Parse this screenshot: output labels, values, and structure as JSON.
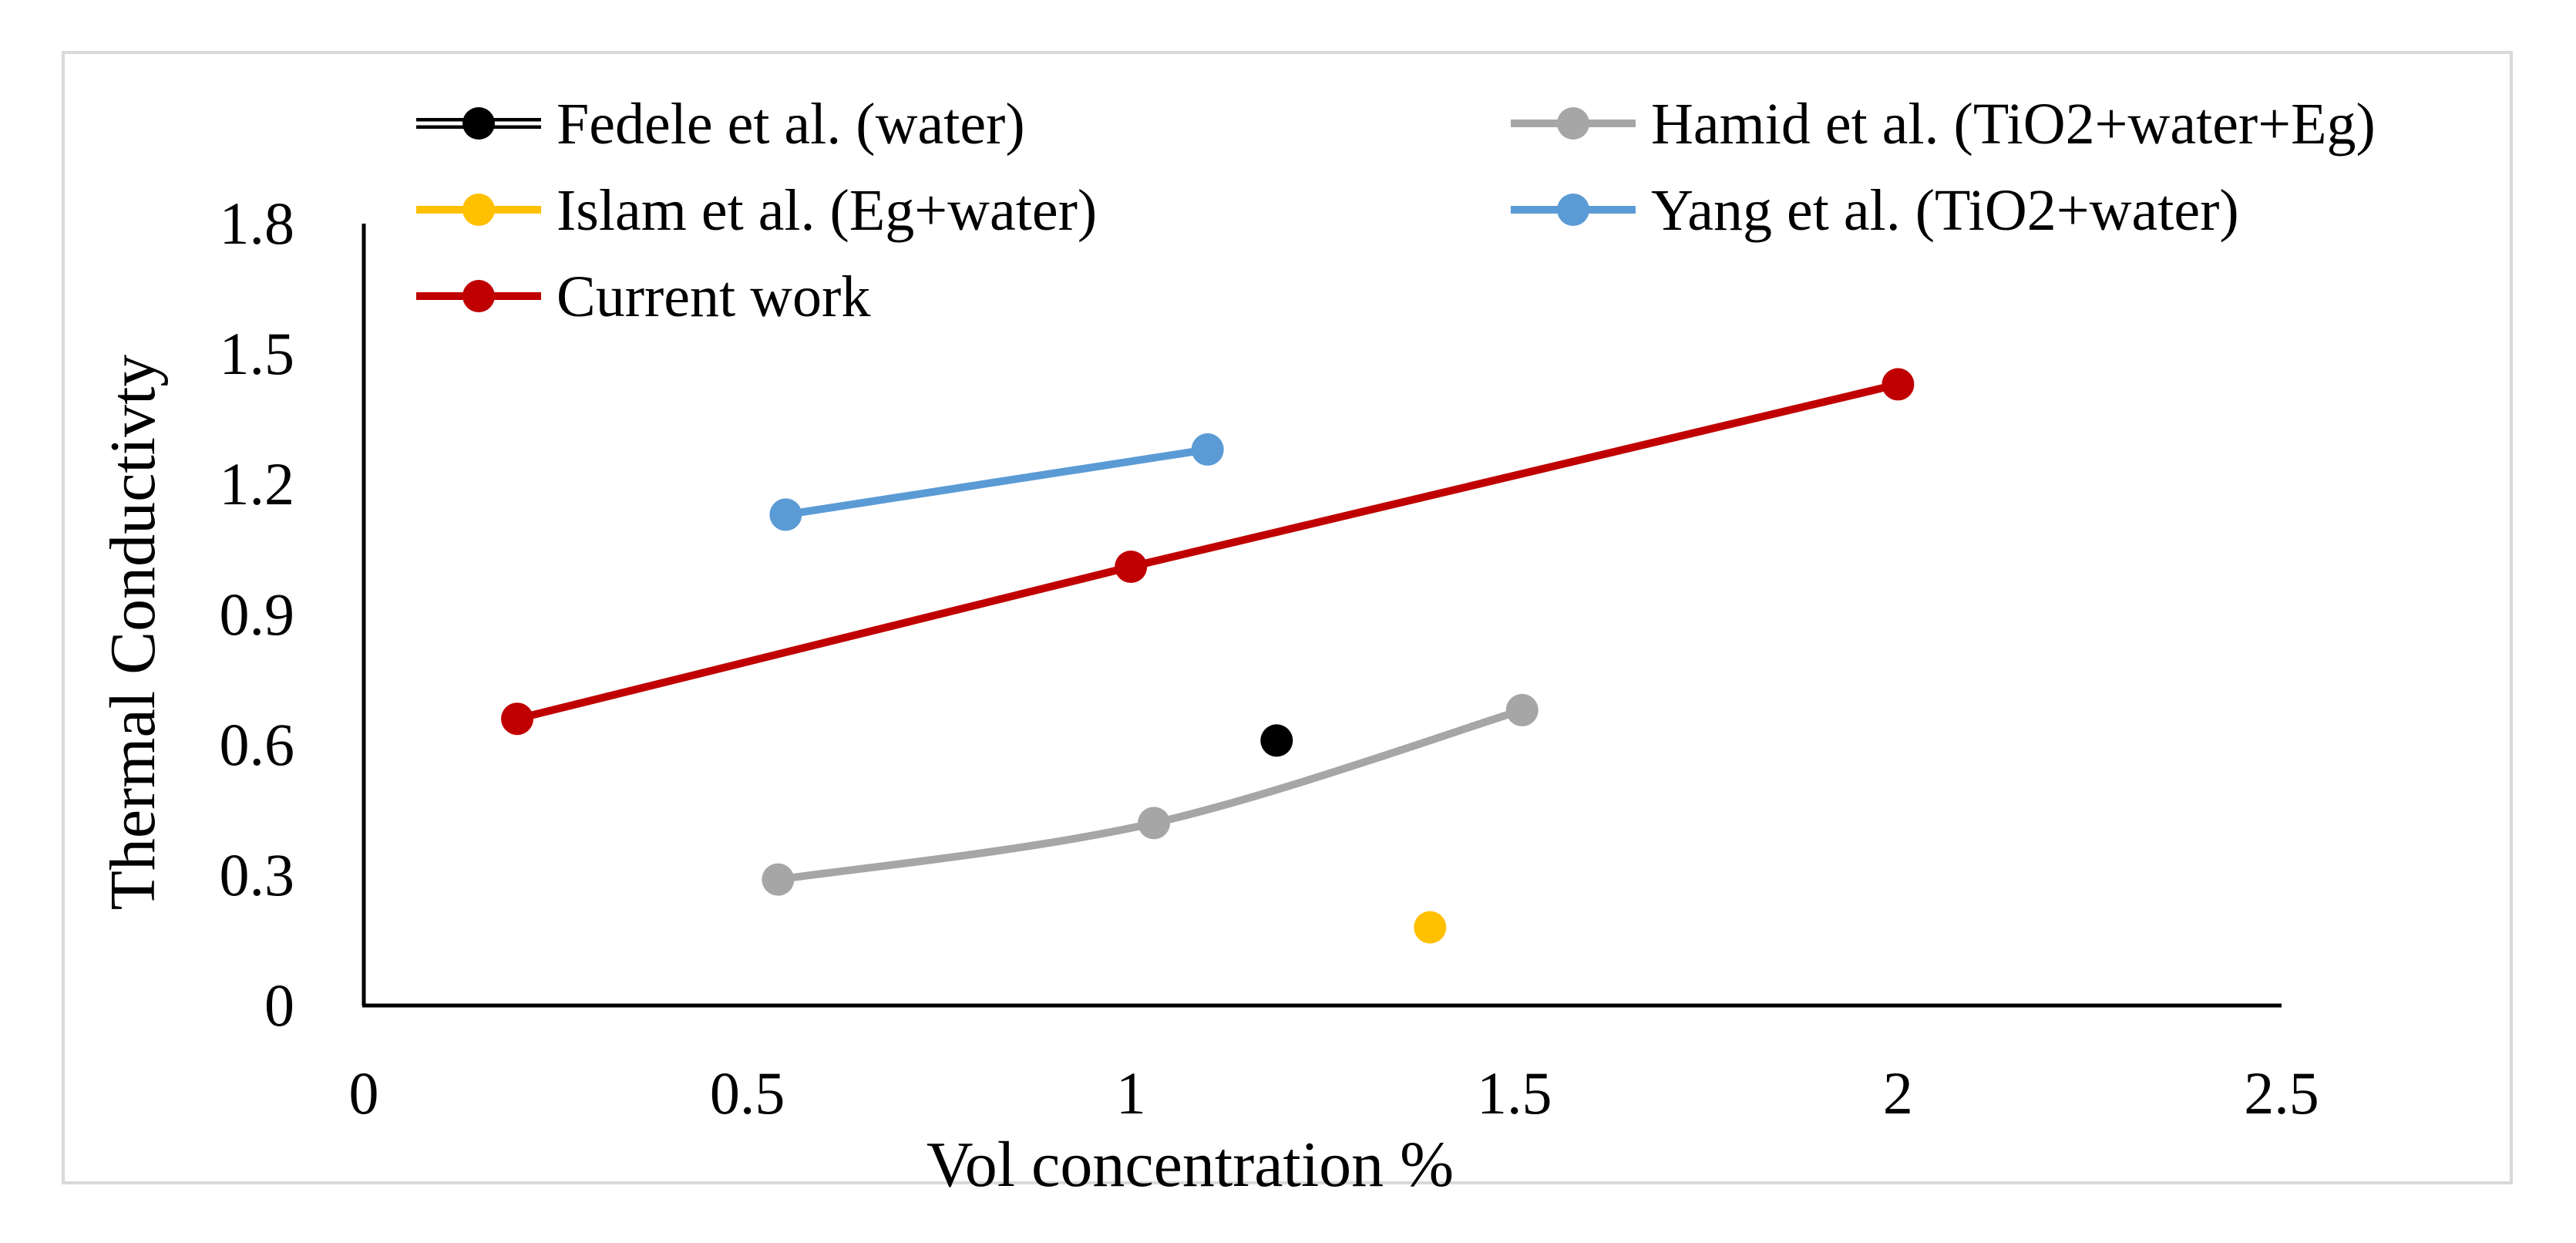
{
  "chart_data": {
    "type": "line",
    "title": "",
    "xlabel": "Vol concentration %",
    "ylabel": "Thermal Conductivty",
    "xlim": [
      0,
      2.5
    ],
    "ylim": [
      0,
      1.8
    ],
    "x_ticks": [
      0,
      0.5,
      1,
      1.5,
      2,
      2.5
    ],
    "y_ticks": [
      0,
      0.3,
      0.6,
      0.9,
      1.2,
      1.5,
      1.8
    ],
    "x_tick_labels": [
      "0",
      "0.5",
      "1",
      "1.5",
      "2",
      "2.5"
    ],
    "y_tick_labels": [
      "0",
      "0.3",
      "0.6",
      "0.9",
      "1.2",
      "1.5",
      "1.8"
    ],
    "grid": false,
    "legend_position": "top",
    "series": [
      {
        "key": "fedele",
        "name": "Fedele et al. (water)",
        "color": "#000000",
        "line": false,
        "smooth": false,
        "x": [
          1.19
        ],
        "y": [
          0.61
        ]
      },
      {
        "key": "hamid",
        "name": "Hamid et al.  (TiO2+water+Eg)",
        "color": "#a6a6a6",
        "line": true,
        "smooth": true,
        "x": [
          0.54,
          1.03,
          1.51
        ],
        "y": [
          0.29,
          0.42,
          0.68
        ]
      },
      {
        "key": "islam",
        "name": "Islam et al. (Eg+water)",
        "color": "#ffc000",
        "line": false,
        "smooth": false,
        "x": [
          1.39
        ],
        "y": [
          0.18
        ]
      },
      {
        "key": "yang",
        "name": "Yang et al. (TiO2+water)",
        "color": "#5b9bd5",
        "line": true,
        "smooth": false,
        "x": [
          0.55,
          1.1
        ],
        "y": [
          1.13,
          1.28
        ]
      },
      {
        "key": "current",
        "name": "Current work",
        "color": "#c00000",
        "line": true,
        "smooth": false,
        "x": [
          0.2,
          1.0,
          2.0
        ],
        "y": [
          0.66,
          1.01,
          1.43
        ]
      }
    ]
  }
}
